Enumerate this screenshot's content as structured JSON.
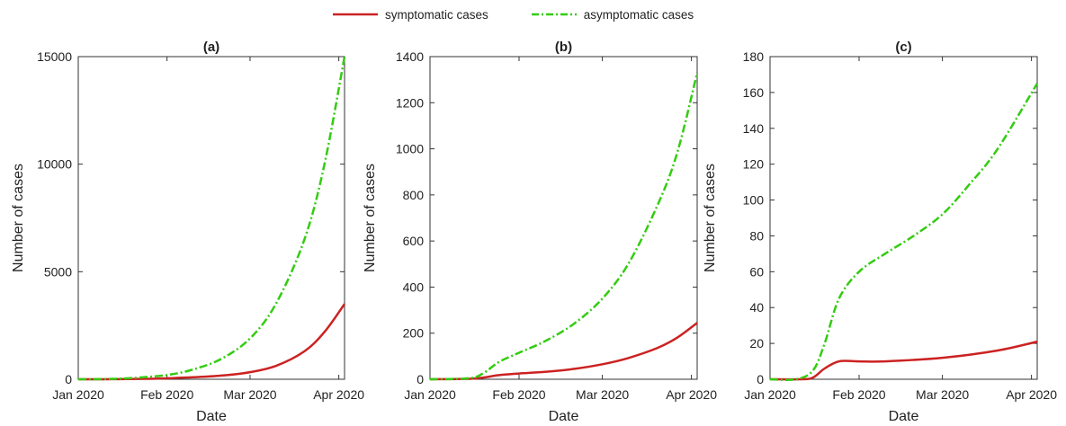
{
  "legend": {
    "symptomatic_label": "symptomatic cases",
    "asymptomatic_label": "asymptomatic cases"
  },
  "colors": {
    "symptomatic": "#cc2222",
    "asymptomatic": "#33cc11"
  },
  "chart_data": [
    {
      "type": "line",
      "title": "(a)",
      "xlabel": "Date",
      "ylabel": "Number of cases",
      "xlim": [
        "2020-01-01",
        "2020-04-03"
      ],
      "ylim": [
        0,
        15000
      ],
      "yticks": [
        0,
        5000,
        10000,
        15000
      ],
      "xticks": [
        {
          "date": "2020-01-01",
          "label": "Jan 2020"
        },
        {
          "date": "2020-02-01",
          "label": "Feb 2020"
        },
        {
          "date": "2020-03-01",
          "label": "Mar 2020"
        },
        {
          "date": "2020-04-01",
          "label": "Apr 2020"
        }
      ],
      "grid": false,
      "legend": "top",
      "series": [
        {
          "name": "symptomatic cases",
          "style": "solid",
          "x": [
            "2020-01-01",
            "2020-01-15",
            "2020-01-25",
            "2020-02-01",
            "2020-02-10",
            "2020-02-20",
            "2020-03-01",
            "2020-03-10",
            "2020-03-20",
            "2020-03-27",
            "2020-04-03"
          ],
          "values": [
            0,
            5,
            20,
            45,
            90,
            170,
            330,
            620,
            1300,
            2200,
            3500
          ]
        },
        {
          "name": "asymptomatic cases",
          "style": "dashdot",
          "x": [
            "2020-01-01",
            "2020-01-10",
            "2020-01-20",
            "2020-02-01",
            "2020-02-10",
            "2020-02-20",
            "2020-03-01",
            "2020-03-10",
            "2020-03-20",
            "2020-03-27",
            "2020-04-03"
          ],
          "values": [
            0,
            10,
            60,
            200,
            450,
            950,
            1900,
            3500,
            6500,
            10000,
            15000
          ]
        }
      ]
    },
    {
      "type": "line",
      "title": "(b)",
      "xlabel": "Date",
      "ylabel": "Number of cases",
      "xlim": [
        "2020-01-01",
        "2020-04-03"
      ],
      "ylim": [
        0,
        1400
      ],
      "yticks": [
        0,
        200,
        400,
        600,
        800,
        1000,
        1200,
        1400
      ],
      "xticks": [
        {
          "date": "2020-01-01",
          "label": "Jan 2020"
        },
        {
          "date": "2020-02-01",
          "label": "Feb 2020"
        },
        {
          "date": "2020-03-01",
          "label": "Mar 2020"
        },
        {
          "date": "2020-04-01",
          "label": "Apr 2020"
        }
      ],
      "grid": false,
      "legend": "top",
      "series": [
        {
          "name": "symptomatic cases",
          "style": "solid",
          "x": [
            "2020-01-01",
            "2020-01-15",
            "2020-01-20",
            "2020-01-25",
            "2020-02-01",
            "2020-02-10",
            "2020-02-20",
            "2020-03-01",
            "2020-03-10",
            "2020-03-20",
            "2020-03-27",
            "2020-04-03"
          ],
          "values": [
            0,
            2,
            8,
            18,
            25,
            32,
            45,
            65,
            92,
            135,
            180,
            245
          ]
        },
        {
          "name": "asymptomatic cases",
          "style": "dashdot",
          "x": [
            "2020-01-01",
            "2020-01-15",
            "2020-01-20",
            "2020-01-25",
            "2020-02-01",
            "2020-02-10",
            "2020-02-20",
            "2020-03-01",
            "2020-03-10",
            "2020-03-20",
            "2020-03-27",
            "2020-04-03"
          ],
          "values": [
            0,
            5,
            30,
            75,
            115,
            165,
            240,
            350,
            500,
            750,
            980,
            1330
          ]
        }
      ]
    },
    {
      "type": "line",
      "title": "(c)",
      "xlabel": "Date",
      "ylabel": "Number of cases",
      "xlim": [
        "2020-01-01",
        "2020-04-03"
      ],
      "ylim": [
        0,
        180
      ],
      "yticks": [
        0,
        20,
        40,
        60,
        80,
        100,
        120,
        140,
        160,
        180
      ],
      "xticks": [
        {
          "date": "2020-01-01",
          "label": "Jan 2020"
        },
        {
          "date": "2020-02-01",
          "label": "Feb 2020"
        },
        {
          "date": "2020-03-01",
          "label": "Mar 2020"
        },
        {
          "date": "2020-04-01",
          "label": "Apr 2020"
        }
      ],
      "grid": false,
      "legend": "top",
      "series": [
        {
          "name": "symptomatic cases",
          "style": "solid",
          "x": [
            "2020-01-01",
            "2020-01-12",
            "2020-01-16",
            "2020-01-20",
            "2020-01-25",
            "2020-02-01",
            "2020-02-10",
            "2020-03-01",
            "2020-03-20",
            "2020-04-03"
          ],
          "values": [
            0,
            0,
            1,
            6,
            10,
            10,
            10,
            12,
            16,
            21
          ]
        },
        {
          "name": "asymptomatic cases",
          "style": "dashdot",
          "x": [
            "2020-01-01",
            "2020-01-10",
            "2020-01-16",
            "2020-01-20",
            "2020-01-25",
            "2020-02-01",
            "2020-02-10",
            "2020-02-20",
            "2020-03-01",
            "2020-03-10",
            "2020-03-20",
            "2020-04-03"
          ],
          "values": [
            0,
            0,
            5,
            20,
            45,
            60,
            70,
            80,
            92,
            108,
            128,
            165
          ]
        }
      ]
    }
  ]
}
